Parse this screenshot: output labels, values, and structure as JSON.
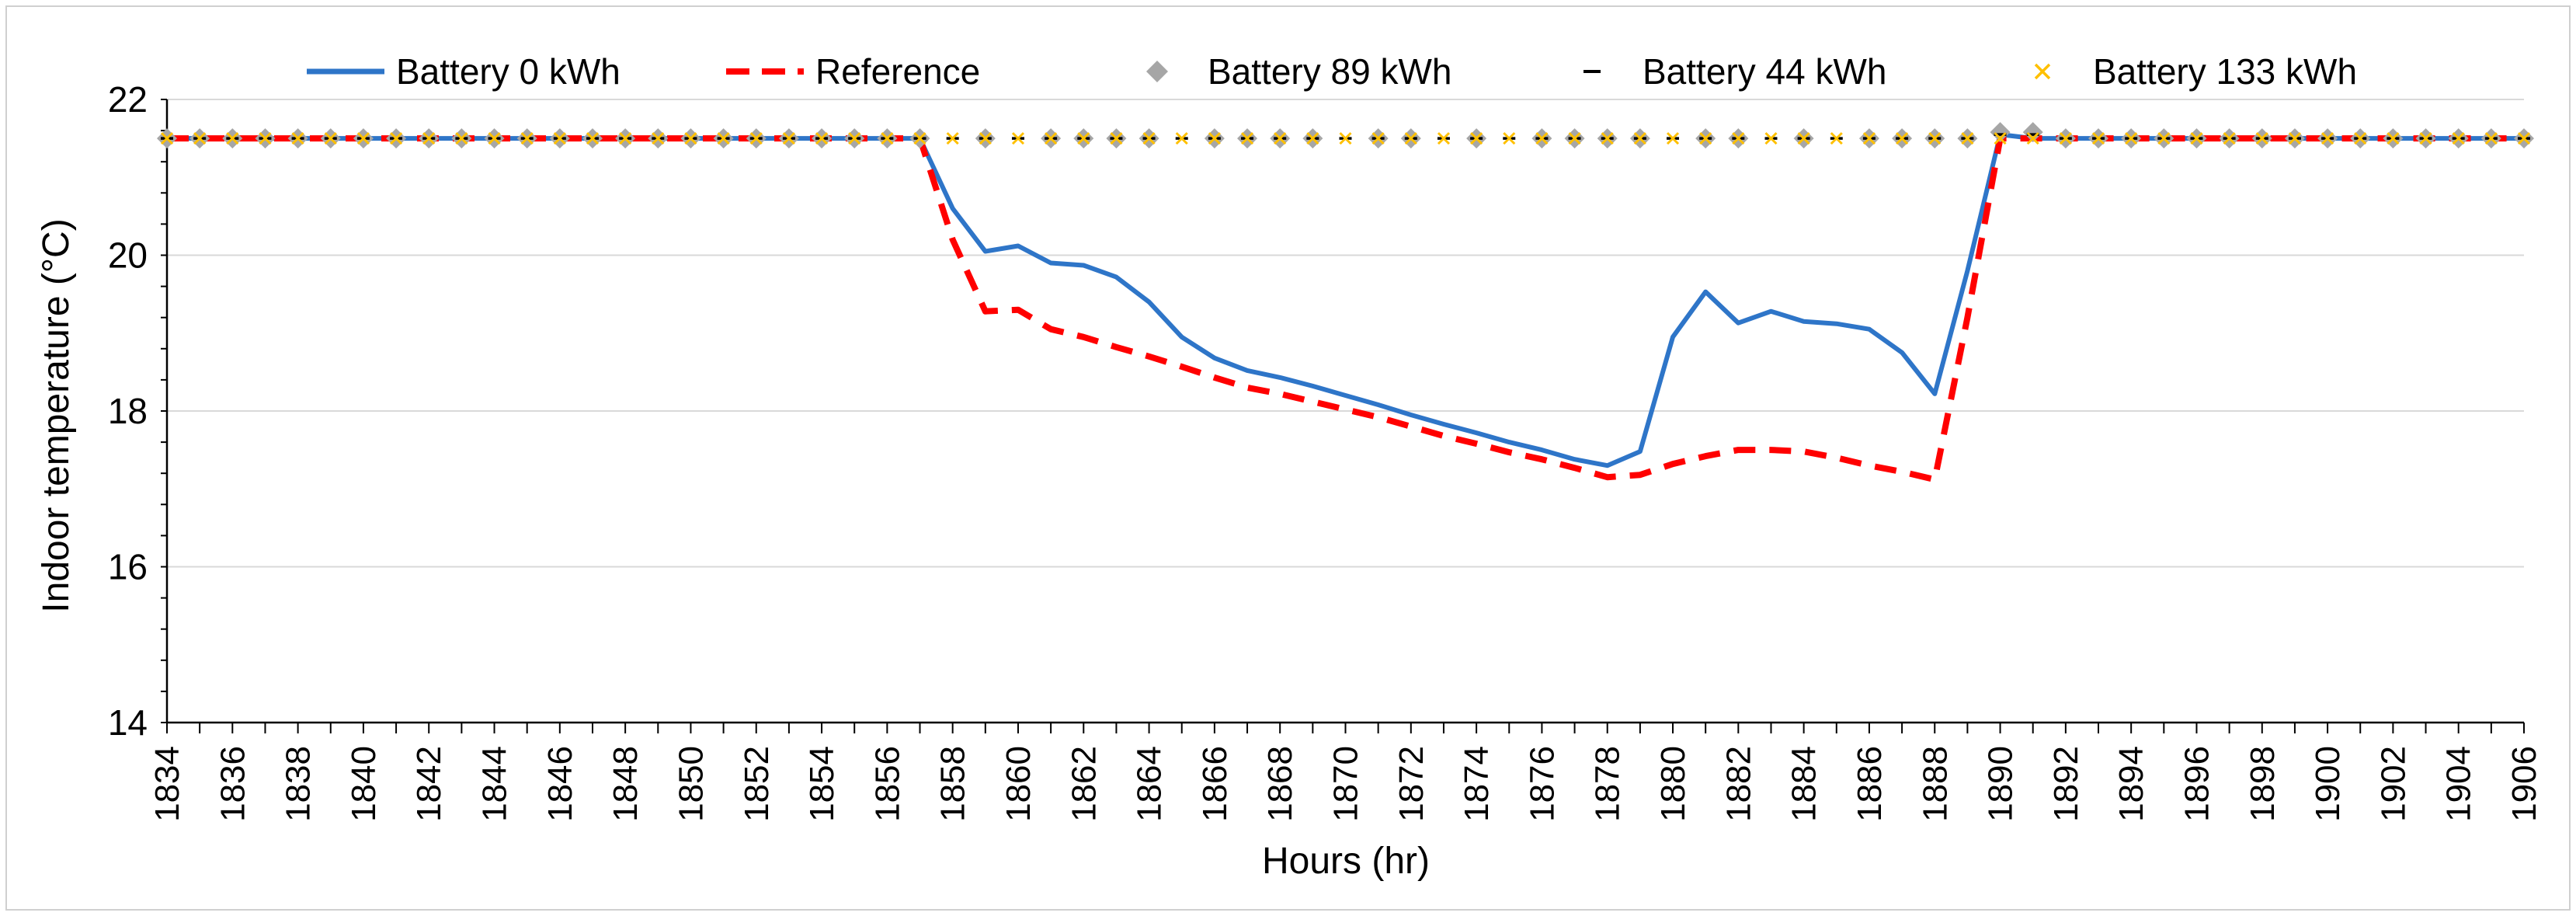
{
  "chart_data": {
    "type": "line",
    "xlabel": "Hours (hr)",
    "ylabel": "Indoor temperature (°C)",
    "xlim": [
      1834,
      1906
    ],
    "ylim": [
      14,
      22
    ],
    "yticks": [
      14,
      16,
      18,
      20,
      22
    ],
    "xticks": [
      1834,
      1836,
      1838,
      1840,
      1842,
      1844,
      1846,
      1848,
      1850,
      1852,
      1854,
      1856,
      1858,
      1860,
      1862,
      1864,
      1866,
      1868,
      1870,
      1872,
      1874,
      1876,
      1878,
      1880,
      1882,
      1884,
      1886,
      1888,
      1890,
      1892,
      1894,
      1896,
      1898,
      1900,
      1902,
      1904,
      1906
    ],
    "grid": "horizontal",
    "legend_position": "top",
    "x": [
      1834,
      1835,
      1836,
      1837,
      1838,
      1839,
      1840,
      1841,
      1842,
      1843,
      1844,
      1845,
      1846,
      1847,
      1848,
      1849,
      1850,
      1851,
      1852,
      1853,
      1854,
      1855,
      1856,
      1857,
      1858,
      1859,
      1860,
      1861,
      1862,
      1863,
      1864,
      1865,
      1866,
      1867,
      1868,
      1869,
      1870,
      1871,
      1872,
      1873,
      1874,
      1875,
      1876,
      1877,
      1878,
      1879,
      1880,
      1881,
      1882,
      1883,
      1884,
      1885,
      1886,
      1887,
      1888,
      1889,
      1890,
      1891,
      1892,
      1893,
      1894,
      1895,
      1896,
      1897,
      1898,
      1899,
      1900,
      1901,
      1902,
      1903,
      1904,
      1905,
      1906
    ],
    "series": [
      {
        "name": "Battery 0 kWh",
        "style": "line",
        "color": "#2E75C8",
        "values": [
          21.5,
          21.5,
          21.5,
          21.5,
          21.5,
          21.5,
          21.5,
          21.5,
          21.5,
          21.5,
          21.5,
          21.5,
          21.5,
          21.5,
          21.5,
          21.5,
          21.5,
          21.5,
          21.5,
          21.5,
          21.5,
          21.5,
          21.5,
          21.5,
          20.6,
          20.05,
          20.12,
          19.9,
          19.87,
          19.72,
          19.4,
          18.95,
          18.68,
          18.52,
          18.43,
          18.32,
          18.2,
          18.08,
          17.95,
          17.83,
          17.72,
          17.6,
          17.5,
          17.38,
          17.3,
          17.48,
          18.95,
          19.53,
          19.13,
          19.28,
          19.15,
          19.12,
          19.05,
          18.75,
          18.22,
          19.8,
          21.55,
          21.5,
          21.5,
          21.5,
          21.5,
          21.5,
          21.5,
          21.5,
          21.5,
          21.5,
          21.5,
          21.5,
          21.5,
          21.5,
          21.5,
          21.5,
          21.5
        ]
      },
      {
        "name": "Reference",
        "style": "dashed",
        "color": "#FF0000",
        "values": [
          21.5,
          21.5,
          21.5,
          21.5,
          21.5,
          21.5,
          21.5,
          21.5,
          21.5,
          21.5,
          21.5,
          21.5,
          21.5,
          21.5,
          21.5,
          21.5,
          21.5,
          21.5,
          21.5,
          21.5,
          21.5,
          21.5,
          21.5,
          21.5,
          20.2,
          19.28,
          19.3,
          19.05,
          18.95,
          18.82,
          18.7,
          18.57,
          18.43,
          18.3,
          18.22,
          18.12,
          18.02,
          17.92,
          17.8,
          17.68,
          17.58,
          17.47,
          17.38,
          17.27,
          17.15,
          17.18,
          17.32,
          17.42,
          17.5,
          17.5,
          17.48,
          17.4,
          17.3,
          17.22,
          17.12,
          19.2,
          21.5,
          21.5,
          21.5,
          21.5,
          21.5,
          21.5,
          21.5,
          21.5,
          21.5,
          21.5,
          21.5,
          21.5,
          21.5,
          21.5,
          21.5,
          21.5,
          21.5
        ]
      },
      {
        "name": "Battery 89 kWh",
        "style": "diamond",
        "color": "#A6A6A6",
        "values": [
          21.5,
          21.5,
          21.5,
          21.5,
          21.5,
          21.5,
          21.5,
          21.5,
          21.5,
          21.5,
          21.5,
          21.5,
          21.5,
          21.5,
          21.5,
          21.5,
          21.5,
          21.5,
          21.5,
          21.5,
          21.5,
          21.5,
          21.5,
          21.5,
          null,
          21.5,
          null,
          21.5,
          21.5,
          21.5,
          21.5,
          null,
          21.5,
          21.5,
          21.5,
          21.5,
          null,
          21.5,
          21.5,
          null,
          21.5,
          null,
          21.5,
          21.5,
          21.5,
          21.5,
          null,
          21.5,
          21.5,
          null,
          21.5,
          null,
          21.5,
          21.5,
          21.5,
          21.5,
          21.58,
          21.58,
          21.5,
          21.5,
          21.5,
          21.5,
          21.5,
          21.5,
          21.5,
          21.5,
          21.5,
          21.5,
          21.5,
          21.5,
          21.5,
          21.5,
          21.5
        ]
      },
      {
        "name": "Battery 44 kWh",
        "style": "dash-marker",
        "color": "#000000",
        "values": [
          21.5,
          21.5,
          21.5,
          21.5,
          21.5,
          21.5,
          21.5,
          21.5,
          21.5,
          21.5,
          21.5,
          21.5,
          21.5,
          21.5,
          21.5,
          21.5,
          21.5,
          21.5,
          21.5,
          21.5,
          21.5,
          21.5,
          21.5,
          21.5,
          21.5,
          21.5,
          21.5,
          21.5,
          21.5,
          21.5,
          21.5,
          21.5,
          21.5,
          21.5,
          21.5,
          21.5,
          21.5,
          21.5,
          21.5,
          21.5,
          21.5,
          21.5,
          21.5,
          21.5,
          21.5,
          21.5,
          21.5,
          21.5,
          21.5,
          21.5,
          21.5,
          21.5,
          21.5,
          21.5,
          21.5,
          21.5,
          21.55,
          21.55,
          21.5,
          21.5,
          21.5,
          21.5,
          21.5,
          21.5,
          21.5,
          21.5,
          21.5,
          21.5,
          21.5,
          21.5,
          21.5,
          21.5,
          21.5
        ]
      },
      {
        "name": "Battery 133 kWh",
        "style": "x-marker",
        "color": "#FFC000",
        "values": [
          21.5,
          21.5,
          21.5,
          21.5,
          21.5,
          21.5,
          21.5,
          21.5,
          21.5,
          21.5,
          21.5,
          21.5,
          21.5,
          21.5,
          21.5,
          21.5,
          21.5,
          21.5,
          21.5,
          21.5,
          21.5,
          21.5,
          21.5,
          21.5,
          21.5,
          21.5,
          21.5,
          21.5,
          21.5,
          21.5,
          21.5,
          21.5,
          21.5,
          21.5,
          21.5,
          21.5,
          21.5,
          21.5,
          21.5,
          21.5,
          21.5,
          21.5,
          21.5,
          21.5,
          21.5,
          21.5,
          21.5,
          21.5,
          21.5,
          21.5,
          21.5,
          21.5,
          21.5,
          21.5,
          21.5,
          21.5,
          21.5,
          21.5,
          21.5,
          21.5,
          21.5,
          21.5,
          21.5,
          21.5,
          21.5,
          21.5,
          21.5,
          21.5,
          21.5,
          21.5,
          21.5,
          21.5,
          21.5
        ]
      }
    ]
  }
}
